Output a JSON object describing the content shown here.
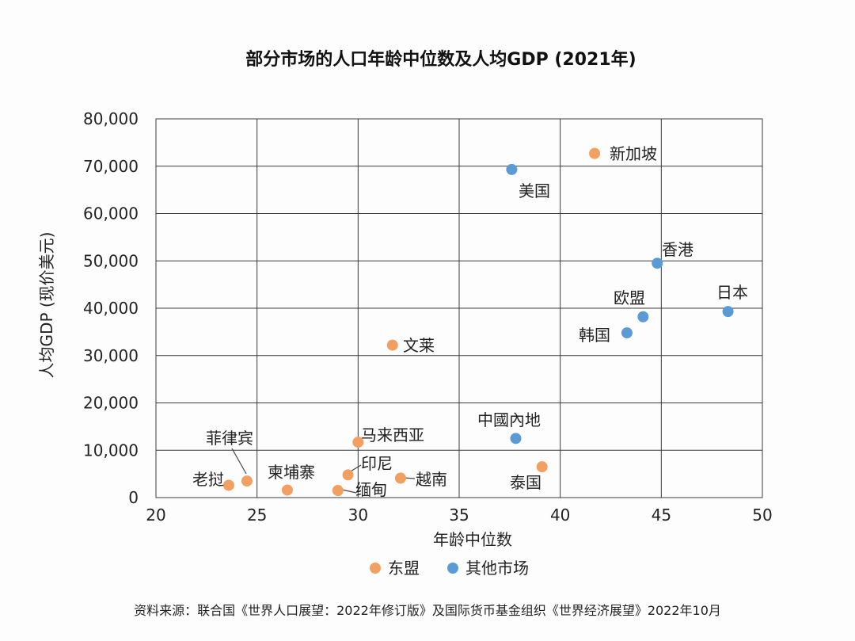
{
  "chart_data": {
    "type": "scatter",
    "title": "部分市场的人口年龄中位数及人均GDP (2021年)",
    "xlabel": "年龄中位数",
    "ylabel": "人均GDP (现价美元)",
    "xlim": [
      20,
      50
    ],
    "ylim": [
      0,
      80000
    ],
    "x_ticks": [
      "20",
      "25",
      "30",
      "35",
      "40",
      "45",
      "50"
    ],
    "y_ticks": [
      "0",
      "10,000",
      "20,000",
      "30,000",
      "40,000",
      "50,000",
      "60,000",
      "70,000",
      "80,000"
    ],
    "grid": true,
    "legend_position": "bottom",
    "colors": {
      "东盟": "#F2A062",
      "其他市场": "#5B9BD5"
    },
    "series": [
      {
        "name": "东盟",
        "points": [
          {
            "label": "老挝",
            "x": 23.6,
            "y": 2600
          },
          {
            "label": "菲律宾",
            "x": 24.5,
            "y": 3500
          },
          {
            "label": "柬埔寨",
            "x": 26.5,
            "y": 1600
          },
          {
            "label": "缅甸",
            "x": 29.0,
            "y": 1500
          },
          {
            "label": "印尼",
            "x": 29.5,
            "y": 4800
          },
          {
            "label": "马来西亚",
            "x": 30.0,
            "y": 11700
          },
          {
            "label": "越南",
            "x": 32.1,
            "y": 4100
          },
          {
            "label": "文莱",
            "x": 31.7,
            "y": 32200
          },
          {
            "label": "泰国",
            "x": 39.1,
            "y": 6500
          },
          {
            "label": "新加坡",
            "x": 41.7,
            "y": 72700
          }
        ]
      },
      {
        "name": "其他市场",
        "points": [
          {
            "label": "中國內地",
            "x": 37.8,
            "y": 12500
          },
          {
            "label": "美国",
            "x": 37.6,
            "y": 69300
          },
          {
            "label": "香港",
            "x": 44.8,
            "y": 49500
          },
          {
            "label": "欧盟",
            "x": 44.1,
            "y": 38200
          },
          {
            "label": "韩国",
            "x": 43.3,
            "y": 34800
          },
          {
            "label": "日本",
            "x": 48.3,
            "y": 39300
          }
        ]
      }
    ]
  },
  "source": "资料来源：联合国《世界人口展望：2022年修订版》及国际货币基金组织《世界经济展望》2022年10月"
}
